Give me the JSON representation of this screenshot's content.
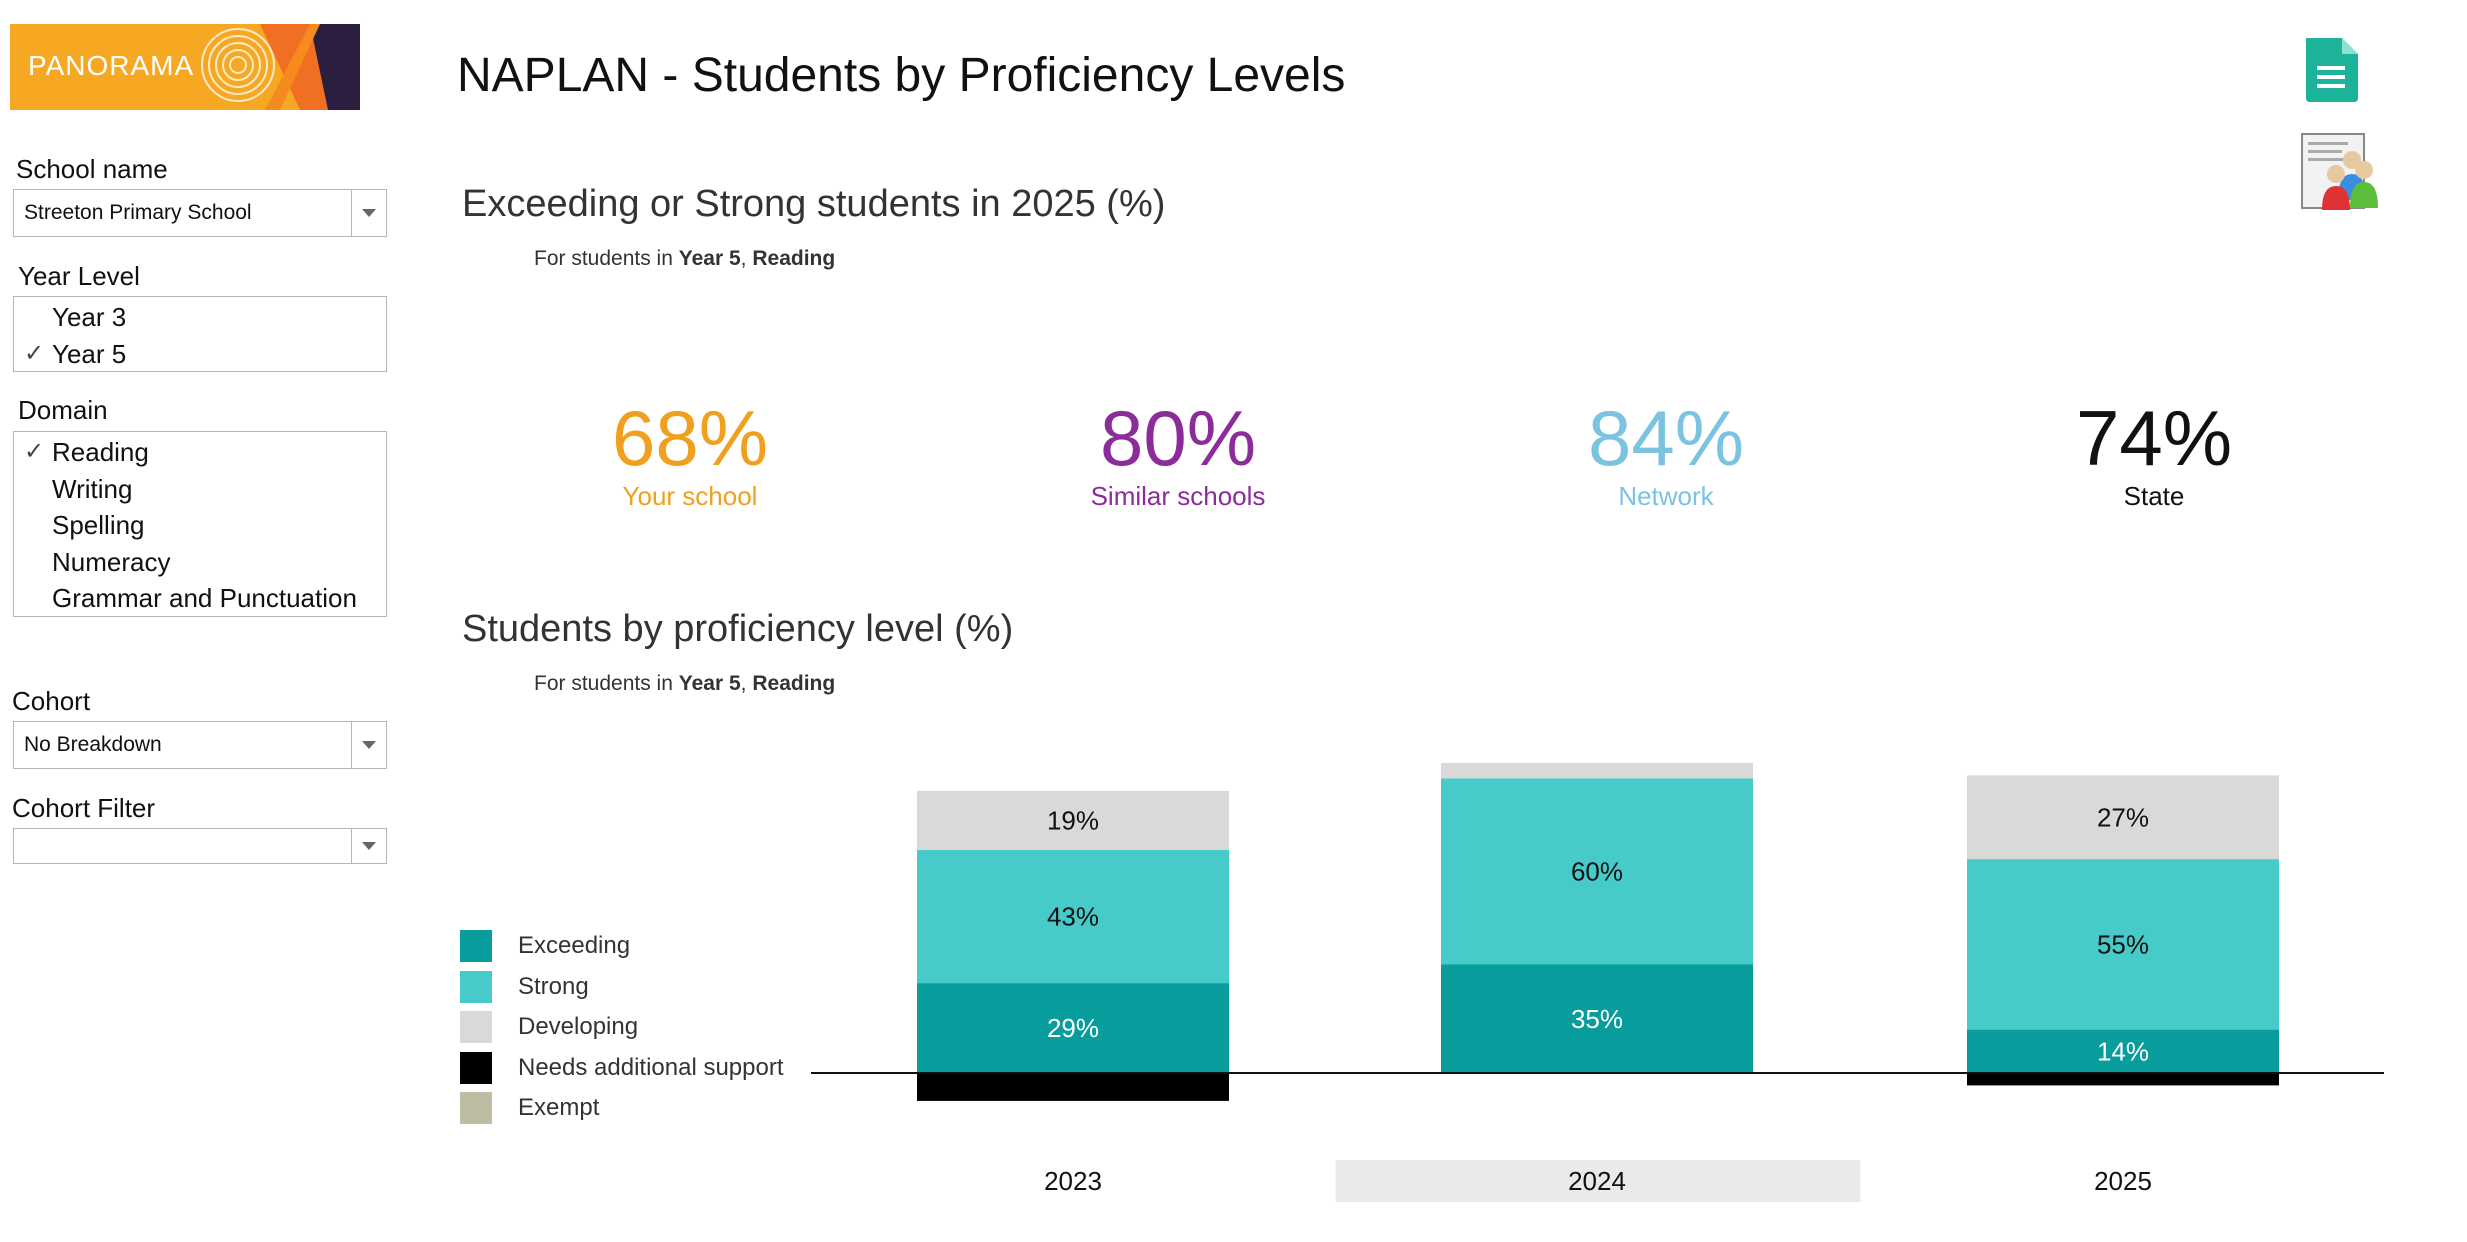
{
  "brand": {
    "logo_text": "PANORAMA"
  },
  "header": {
    "title": "NAPLAN - Students by Proficiency Levels"
  },
  "sidebar": {
    "school": {
      "label": "School name",
      "value": "Streeton Primary School"
    },
    "year_level": {
      "label": "Year Level",
      "items": [
        {
          "label": "Year 3",
          "checked": false
        },
        {
          "label": "Year 5",
          "checked": true
        }
      ]
    },
    "domain": {
      "label": "Domain",
      "items": [
        {
          "label": "Reading",
          "checked": true
        },
        {
          "label": "Writing",
          "checked": false
        },
        {
          "label": "Spelling",
          "checked": false
        },
        {
          "label": "Numeracy",
          "checked": false
        },
        {
          "label": "Grammar and Punctuation",
          "checked": false
        }
      ]
    },
    "cohort": {
      "label": "Cohort",
      "value": "No Breakdown"
    },
    "cohort_filter": {
      "label": "Cohort Filter",
      "value": ""
    }
  },
  "kpi_section": {
    "title": "Exceeding or Strong students in 2025 (%)",
    "subtitle_prefix": "For students in",
    "subtitle_year": "Year 5",
    "subtitle_sep": ",",
    "subtitle_domain": "Reading",
    "items": [
      {
        "value": "68%",
        "label": "Your school",
        "color": "#F0A01E"
      },
      {
        "value": "80%",
        "label": "Similar schools",
        "color": "#8B2C9A"
      },
      {
        "value": "84%",
        "label": "Network",
        "color": "#7CC3E1"
      },
      {
        "value": "74%",
        "label": "State",
        "color": "#111111"
      }
    ]
  },
  "chart_section": {
    "title": "Students by proficiency level (%)",
    "subtitle_prefix": "For students in",
    "subtitle_year": "Year 5",
    "subtitle_sep": ",",
    "subtitle_domain": "Reading"
  },
  "legend": [
    {
      "label": "Exceeding",
      "color": "#089C9C"
    },
    {
      "label": "Strong",
      "color": "#46CBCA"
    },
    {
      "label": "Developing",
      "color": "#D9D9D7"
    },
    {
      "label": "Needs additional support",
      "color": "#000000"
    },
    {
      "label": "Exempt",
      "color": "#BEBDA3"
    }
  ],
  "icons": {
    "document": "document-icon",
    "people": "people-report-icon"
  },
  "chart_data": {
    "type": "bar",
    "stacked": true,
    "title": "Students by proficiency level (%)",
    "categories": [
      "2023",
      "2024",
      "2025"
    ],
    "highlighted_category": "2024",
    "series": [
      {
        "name": "Exceeding",
        "values": [
          29,
          35,
          14
        ],
        "labels": [
          "29%",
          "35%",
          "14%"
        ],
        "color": "#089C9C",
        "label_color": "#ffffff",
        "direction": "up"
      },
      {
        "name": "Strong",
        "values": [
          43,
          60,
          55
        ],
        "labels": [
          "43%",
          "60%",
          "55%"
        ],
        "color": "#46CBCA",
        "label_color": "#111111",
        "direction": "up"
      },
      {
        "name": "Developing",
        "values": [
          19,
          5,
          27
        ],
        "labels": [
          "19%",
          "",
          "27%"
        ],
        "color": "#D9D9D7",
        "label_color": "#111111",
        "direction": "up"
      },
      {
        "name": "Needs additional support",
        "values": [
          9,
          0,
          4
        ],
        "labels": [
          "",
          "",
          ""
        ],
        "color": "#000000",
        "label_color": "#ffffff",
        "direction": "down"
      },
      {
        "name": "Exempt",
        "values": [
          0,
          0,
          0
        ],
        "labels": [
          "",
          "",
          ""
        ],
        "color": "#BEBDA3",
        "label_color": "#111111",
        "direction": "down"
      }
    ],
    "baseline": "zero line",
    "grid": false,
    "legend_position": "left"
  }
}
